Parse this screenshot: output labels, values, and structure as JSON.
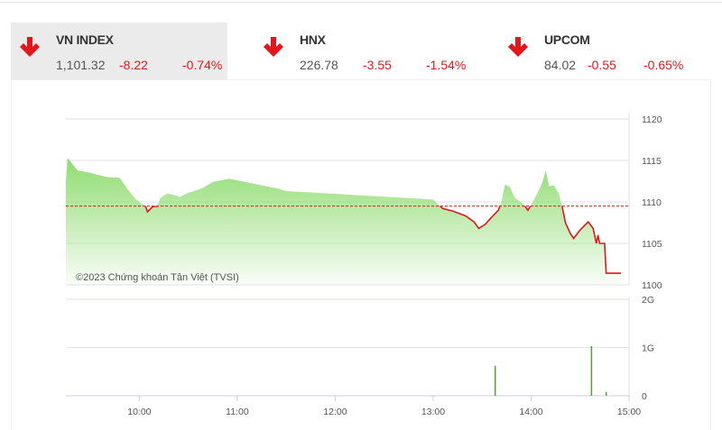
{
  "indices": [
    {
      "name": "VN INDEX",
      "value": "1,101.32",
      "change": "-8.22",
      "percent": "-0.74%",
      "direction": "down",
      "active": true
    },
    {
      "name": "HNX",
      "value": "226.78",
      "change": "-3.55",
      "percent": "-1.54%",
      "direction": "down",
      "active": false
    },
    {
      "name": "UPCOM",
      "value": "84.02",
      "change": "-0.55",
      "percent": "-0.65%",
      "direction": "down",
      "active": false
    }
  ],
  "colors": {
    "down": "#e4161b",
    "fill": "#8fdc70",
    "volume": "#5a9e3a"
  },
  "watermark": "©2023 Chứng khoán Tân Việt (TVSI)",
  "chart_data": [
    {
      "type": "area",
      "reference": 1109.5,
      "ylim": [
        1100,
        1120
      ],
      "yticks": [
        "1120",
        "1115",
        "1110",
        "1105",
        "1100"
      ],
      "xlim": [
        "9:15",
        "15:00"
      ],
      "grid": true,
      "points": [
        [
          "9:15",
          1112.5
        ],
        [
          "9:16",
          1115.3
        ],
        [
          "9:19",
          1114.6
        ],
        [
          "9:22",
          1113.8
        ],
        [
          "9:30",
          1113.5
        ],
        [
          "9:40",
          1113.0
        ],
        [
          "9:48",
          1112.9
        ],
        [
          "9:53",
          1111.5
        ],
        [
          "9:58",
          1110.3
        ],
        [
          "10:04",
          1109.4
        ],
        [
          "10:05",
          1108.8
        ],
        [
          "10:08",
          1109.4
        ],
        [
          "10:11",
          1109.5
        ],
        [
          "10:13",
          1110.5
        ],
        [
          "10:17",
          1111.0
        ],
        [
          "10:22",
          1110.8
        ],
        [
          "10:25",
          1110.6
        ],
        [
          "10:30",
          1111.1
        ],
        [
          "10:38",
          1111.6
        ],
        [
          "10:45",
          1112.4
        ],
        [
          "10:55",
          1112.8
        ],
        [
          "11:05",
          1112.4
        ],
        [
          "11:15",
          1112.0
        ],
        [
          "11:25",
          1111.6
        ],
        [
          "11:30",
          1111.3
        ],
        [
          "13:00",
          1110.3
        ],
        [
          "13:03",
          1109.7
        ],
        [
          "13:06",
          1109.2
        ],
        [
          "13:12",
          1108.9
        ],
        [
          "13:20",
          1108.3
        ],
        [
          "13:25",
          1107.6
        ],
        [
          "13:28",
          1106.8
        ],
        [
          "13:32",
          1107.3
        ],
        [
          "13:36",
          1108.2
        ],
        [
          "13:40",
          1109.0
        ],
        [
          "13:42",
          1110.2
        ],
        [
          "13:44",
          1112.1
        ],
        [
          "13:47",
          1111.8
        ],
        [
          "13:50",
          1110.5
        ],
        [
          "13:55",
          1109.8
        ],
        [
          "13:58",
          1109.0
        ],
        [
          "14:01",
          1110.0
        ],
        [
          "14:05",
          1111.5
        ],
        [
          "14:07",
          1112.4
        ],
        [
          "14:09",
          1113.8
        ],
        [
          "14:11",
          1111.9
        ],
        [
          "14:14",
          1112.0
        ],
        [
          "14:17",
          1111.0
        ],
        [
          "14:19",
          1109.5
        ],
        [
          "14:21",
          1107.5
        ],
        [
          "14:24",
          1106.2
        ],
        [
          "14:26",
          1105.6
        ],
        [
          "14:30",
          1106.6
        ],
        [
          "14:35",
          1107.6
        ],
        [
          "14:38",
          1106.8
        ],
        [
          "14:40",
          1105.0
        ],
        [
          "14:41",
          1106.0
        ],
        [
          "14:42",
          1105.0
        ],
        [
          "14:45",
          1105.0
        ],
        [
          "14:46",
          1101.4
        ],
        [
          "14:55",
          1101.4
        ]
      ]
    },
    {
      "type": "bar",
      "ylim": [
        0,
        2
      ],
      "yticks": [
        "2G",
        "1G",
        "0"
      ],
      "xticks": [
        "10:00",
        "11:00",
        "12:00",
        "13:00",
        "14:00",
        "15:00"
      ],
      "bars": [
        [
          "13:38",
          0.62
        ],
        [
          "14:37",
          1.03
        ],
        [
          "14:46",
          0.08
        ]
      ]
    }
  ]
}
